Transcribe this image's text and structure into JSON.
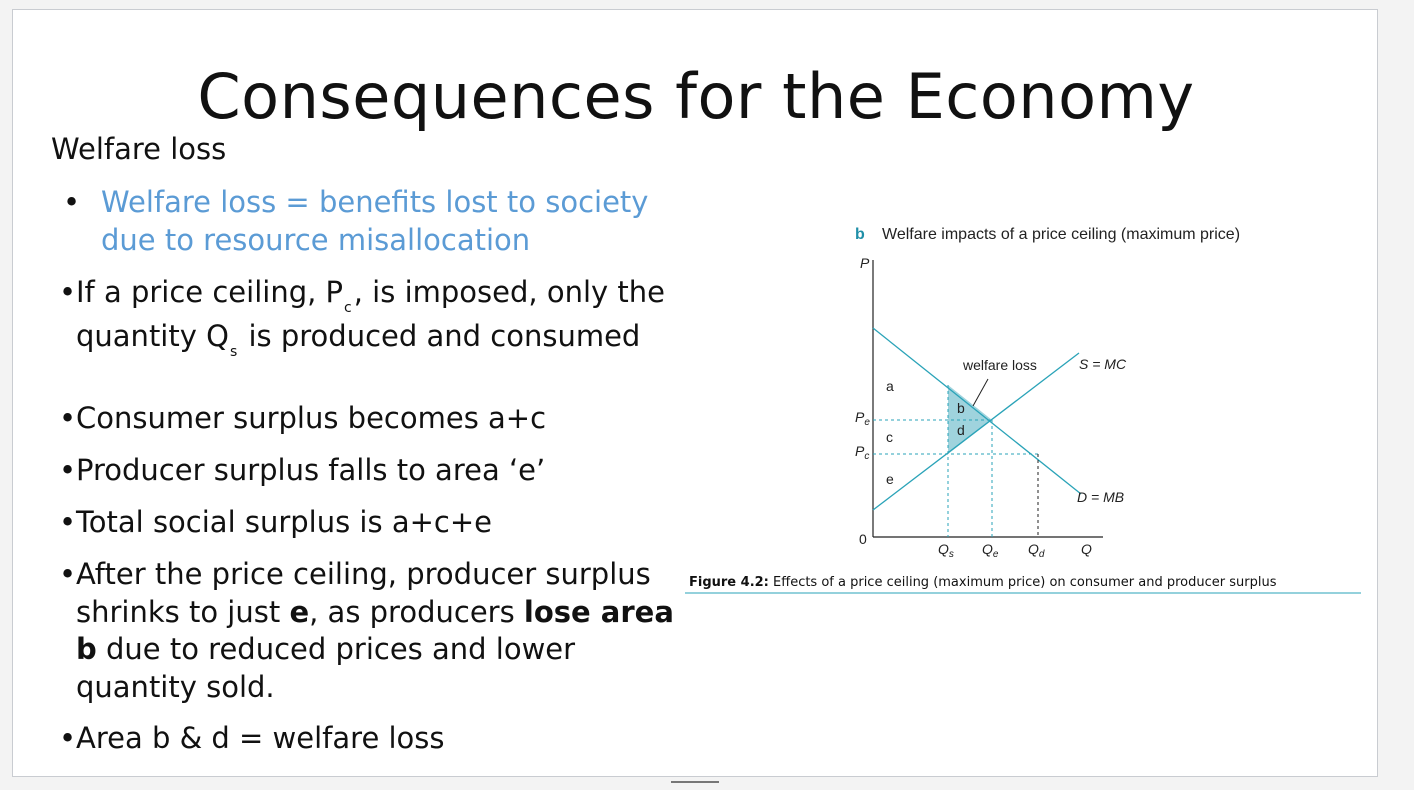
{
  "title": "Consequences for the Economy",
  "subheading": "Welfare loss",
  "bullets": {
    "definition": "Welfare loss = benefits lost to society due to resource misallocation",
    "price_ceiling": {
      "t1": "If a price ceiling, P",
      "s1": "c",
      "t2": ", is imposed, only the quantity Q",
      "s2": "s",
      "t3": " is produced and consumed"
    },
    "consumer_surplus": "Consumer surplus becomes a+c",
    "producer_surplus": "Producer surplus falls to area ‘e’",
    "total_surplus": "Total social surplus is a+c+e",
    "after": {
      "t1": "After the price ceiling, producer surplus shrinks to just ",
      "b1": "e",
      "t2": ", as producers ",
      "b2": "lose area b",
      "t3": " due to reduced prices and lower quantity sold."
    },
    "area_bd": "Area b & d = welfare loss"
  },
  "figure": {
    "panel_letter": "b",
    "panel_title": "Welfare impacts of a price ceiling (maximum price)",
    "axis_p": "P",
    "axis_q": "Q",
    "origin": "0",
    "p_e": "P",
    "p_e_sub": "e",
    "p_c": "P",
    "p_c_sub": "c",
    "q_s": "Q",
    "q_s_sub": "s",
    "q_e": "Q",
    "q_e_sub": "e",
    "q_d": "Q",
    "q_d_sub": "d",
    "supply_label": "S = MC",
    "demand_label": "D = MB",
    "welfare_loss_label": "welfare loss",
    "area_a": "a",
    "area_b": "b",
    "area_c": "c",
    "area_d": "d",
    "area_e": "e",
    "caption_bold": "Figure 4.2:",
    "caption_text": " Effects of a price ceiling (maximum price) on consumer and producer surplus",
    "colors": {
      "line": "#2aa3b8",
      "shade": "#9fd3dd",
      "rule": "#2aa3b8"
    }
  }
}
